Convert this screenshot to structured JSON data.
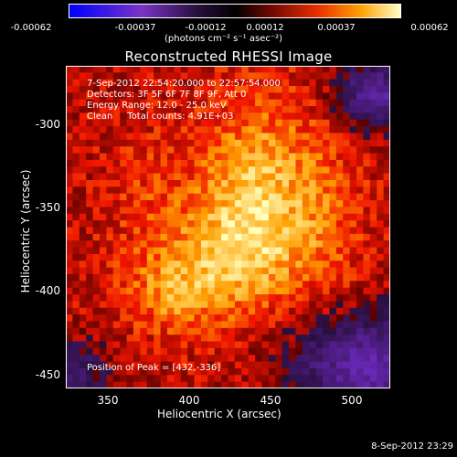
{
  "colorbar": {
    "ticks": [
      "-0.00062",
      "-0.00037",
      "-0.00012",
      "0.00012",
      "0.00037",
      "0.00062"
    ],
    "units": "(photons cm⁻² s⁻¹ asec⁻²)"
  },
  "title": "Reconstructed RHESSI Image",
  "info": {
    "time": "7-Sep-2012 22:54:20.000 to 22:57:54.000",
    "detectors": "Detectors: 3F 5F 6F 7F 8F 9F, Att 0",
    "energy": "Energy Range: 12.0 - 25.0 keV",
    "clean": "Clean     Total counts: 4.91E+03"
  },
  "peak": "Position of Peak = [432,-336]",
  "axes": {
    "xlabel": "Heliocentric X (arcsec)",
    "ylabel": "Heliocentric Y (arcsec)",
    "xticks": [
      "350",
      "400",
      "450",
      "500"
    ],
    "yticks": [
      "-300",
      "-350",
      "-400",
      "-450"
    ]
  },
  "datestamp": "8-Sep-2012 23:29"
}
